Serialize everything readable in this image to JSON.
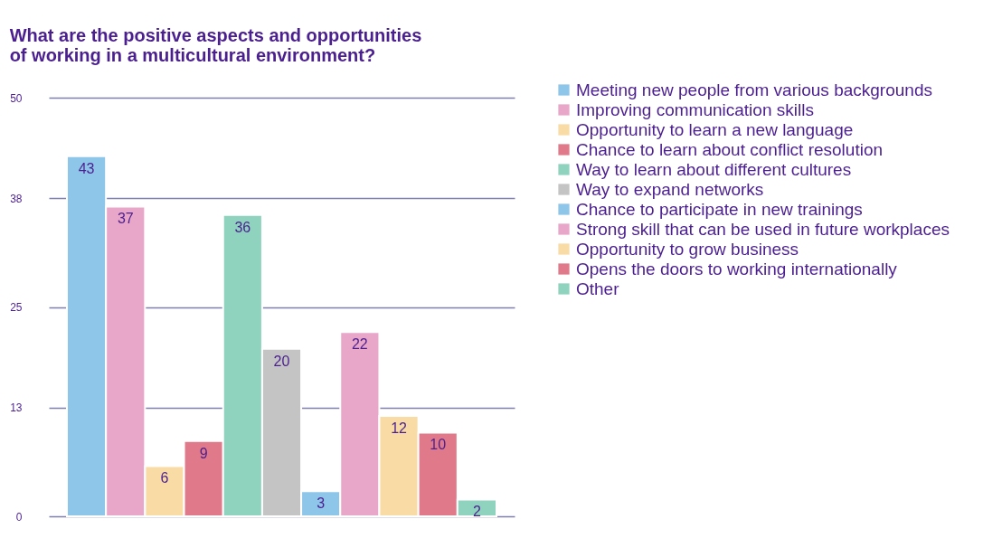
{
  "chart_data": {
    "type": "bar",
    "title": "What are the positive aspects and opportunities\nof working in a multicultural environment?",
    "categories": [
      null
    ],
    "series": [
      {
        "name": "Meeting new people from various backgrounds",
        "color": "#8ec6ea",
        "values": [
          43
        ]
      },
      {
        "name": "Improving communication skills",
        "color": "#e8a6c8",
        "values": [
          37
        ]
      },
      {
        "name": "Opportunity to learn a new language",
        "color": "#f9dba6",
        "values": [
          6
        ]
      },
      {
        "name": "Chance to learn about conflict resolution",
        "color": "#e07a8a",
        "values": [
          9
        ]
      },
      {
        "name": "Way to learn about different cultures",
        "color": "#8fd3bf",
        "values": [
          36
        ]
      },
      {
        "name": "Way to expand networks",
        "color": "#c4c4c4",
        "values": [
          20
        ]
      },
      {
        "name": "Chance to participate in new trainings",
        "color": "#8ec6ea",
        "values": [
          3
        ]
      },
      {
        "name": "Strong skill that can be used in future workplaces",
        "color": "#e8a6c8",
        "values": [
          22
        ]
      },
      {
        "name": "Opportunity to grow business",
        "color": "#f9dba6",
        "values": [
          12
        ]
      },
      {
        "name": "Opens the doors to working internationally",
        "color": "#e07a8a",
        "values": [
          10
        ]
      },
      {
        "name": "Other",
        "color": "#8fd3bf",
        "values": [
          2
        ]
      }
    ],
    "ylim": [
      0,
      50
    ],
    "yticks": [
      0,
      13,
      25,
      38,
      50
    ],
    "grid": "y",
    "legend": "right",
    "tick_labels": "y",
    "data_labels": true
  }
}
